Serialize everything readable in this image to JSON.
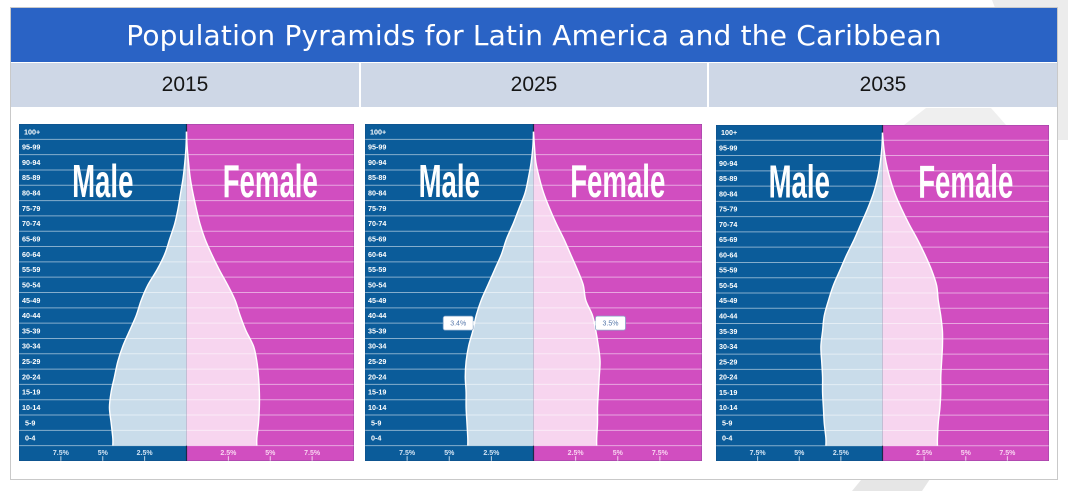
{
  "title": "Population Pyramids for Latin America and the Caribbean",
  "years": [
    "2015",
    "2025",
    "2035"
  ],
  "colors": {
    "title_bar": "#2a63c5",
    "year_row": "#ced7e6",
    "male": "#0b5c9a",
    "female": "#d14ec0",
    "male_fill": "#c9dcea",
    "female_fill": "#f7d5ef",
    "male_tick_text": "#d3e4f4",
    "female_tick_text": "#f9d4f1",
    "tooltip_text": "#5577aa",
    "tooltip_border": "#8aa8c8"
  },
  "chart_data": [
    {
      "type": "bar",
      "orientation": "horizontal-population-pyramid",
      "title": "2015",
      "xlabel": "",
      "ylabel": "",
      "xlim": [
        -10,
        10
      ],
      "x_tick_values": [
        -7.5,
        -5,
        -2.5,
        2.5,
        5,
        7.5
      ],
      "x_tick_labels": [
        "7.5%",
        "5%",
        "2.5%",
        "2.5%",
        "5%",
        "7.5%"
      ],
      "grid": true,
      "categories": [
        "100+",
        "95-99",
        "90-94",
        "85-89",
        "80-84",
        "75-79",
        "70-74",
        "65-69",
        "60-64",
        "55-59",
        "50-54",
        "45-49",
        "40-44",
        "35-39",
        "30-34",
        "25-29",
        "20-24",
        "15-19",
        "10-14",
        "5-9",
        "0-4"
      ],
      "series": [
        {
          "name": "Male",
          "side": "left",
          "values": [
            0.0,
            0.03,
            0.1,
            0.2,
            0.35,
            0.5,
            0.7,
            1.0,
            1.3,
            1.75,
            2.3,
            2.7,
            3.0,
            3.4,
            3.8,
            4.1,
            4.3,
            4.5,
            4.6,
            4.5,
            4.4
          ]
        },
        {
          "name": "Female",
          "side": "right",
          "values": [
            0.0,
            0.04,
            0.12,
            0.22,
            0.38,
            0.58,
            0.8,
            1.1,
            1.5,
            1.95,
            2.45,
            2.9,
            3.2,
            3.55,
            4.0,
            4.2,
            4.3,
            4.35,
            4.35,
            4.3,
            4.2
          ]
        }
      ],
      "annotations": []
    },
    {
      "type": "bar",
      "orientation": "horizontal-population-pyramid",
      "title": "2025",
      "xlabel": "",
      "ylabel": "",
      "xlim": [
        -10,
        10
      ],
      "x_tick_values": [
        -7.5,
        -5,
        -2.5,
        2.5,
        5,
        7.5
      ],
      "x_tick_labels": [
        "7.5%",
        "5%",
        "2.5%",
        "2.5%",
        "5%",
        "7.5%"
      ],
      "grid": true,
      "categories": [
        "100+",
        "95-99",
        "90-94",
        "85-89",
        "80-84",
        "75-79",
        "70-74",
        "65-69",
        "60-64",
        "55-59",
        "50-54",
        "45-49",
        "40-44",
        "35-39",
        "30-34",
        "25-29",
        "20-24",
        "15-19",
        "10-14",
        "5-9",
        "0-4"
      ],
      "series": [
        {
          "name": "Male",
          "side": "left",
          "values": [
            0.0,
            0.04,
            0.14,
            0.3,
            0.5,
            0.85,
            1.2,
            1.6,
            1.9,
            2.3,
            2.7,
            3.1,
            3.4,
            3.6,
            3.85,
            4.0,
            4.05,
            4.0,
            4.0,
            3.95,
            3.9
          ]
        },
        {
          "name": "Female",
          "side": "right",
          "values": [
            0.0,
            0.06,
            0.14,
            0.34,
            0.6,
            0.95,
            1.35,
            1.8,
            2.2,
            2.6,
            2.95,
            3.1,
            3.5,
            3.7,
            3.85,
            3.95,
            3.9,
            3.85,
            3.8,
            3.8,
            3.75
          ]
        }
      ],
      "annotations": [
        {
          "series": "Male",
          "category": "40-44",
          "label": "3.4%"
        },
        {
          "series": "Female",
          "category": "40-44",
          "label": "3.5%"
        }
      ]
    },
    {
      "type": "bar",
      "orientation": "horizontal-population-pyramid",
      "title": "2035",
      "xlabel": "",
      "ylabel": "",
      "xlim": [
        -10,
        10
      ],
      "x_tick_values": [
        -7.5,
        -5,
        -2.5,
        2.5,
        5,
        7.5
      ],
      "x_tick_labels": [
        "7.5%",
        "5%",
        "2.5%",
        "2.5%",
        "5%",
        "7.5%"
      ],
      "grid": true,
      "categories": [
        "100+",
        "95-99",
        "90-94",
        "85-89",
        "80-84",
        "75-79",
        "70-74",
        "65-69",
        "60-64",
        "55-59",
        "50-54",
        "45-49",
        "40-44",
        "35-39",
        "30-34",
        "25-29",
        "20-24",
        "15-19",
        "10-14",
        "5-9",
        "0-4"
      ],
      "series": [
        {
          "name": "Male",
          "side": "left",
          "values": [
            0.0,
            0.04,
            0.14,
            0.3,
            0.55,
            0.9,
            1.3,
            1.7,
            2.15,
            2.55,
            2.95,
            3.25,
            3.5,
            3.6,
            3.7,
            3.65,
            3.6,
            3.6,
            3.55,
            3.5,
            3.4
          ]
        },
        {
          "name": "Female",
          "side": "right",
          "values": [
            0.0,
            0.08,
            0.22,
            0.45,
            0.75,
            1.15,
            1.6,
            2.1,
            2.55,
            2.95,
            3.25,
            3.35,
            3.5,
            3.6,
            3.6,
            3.55,
            3.5,
            3.5,
            3.45,
            3.35,
            3.3
          ]
        }
      ],
      "annotations": []
    }
  ]
}
